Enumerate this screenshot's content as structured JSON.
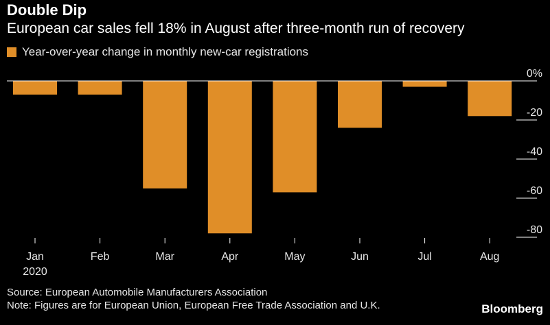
{
  "title": "Double Dip",
  "subtitle": "European car sales fell 18% in August after three-month run of recovery",
  "footer": {
    "source": "Source: European Automobile Manufacturers Association",
    "note": "Note: Figures are for European Union, European Free Trade Association and U.K.",
    "brand": "Bloomberg"
  },
  "colors": {
    "bar": "#E08E28",
    "background": "#000000",
    "text": "#FFFFFF",
    "axis": "#FFFFFF"
  },
  "chart_data": {
    "type": "bar",
    "categories": [
      "Jan",
      "Feb",
      "Mar",
      "Apr",
      "May",
      "Jun",
      "Jul",
      "Aug"
    ],
    "category_sublabels": [
      "2020",
      "",
      "",
      "",
      "",
      "",
      "",
      ""
    ],
    "series": [
      {
        "name": "Year-over-year change in monthly new-car registrations",
        "values": [
          -7,
          -7,
          -55,
          -78,
          -57,
          -24,
          -3,
          -18
        ]
      }
    ],
    "y_ticks": [
      "0%",
      "-20",
      "-40",
      "-60",
      "-80"
    ],
    "y_tick_values": [
      0,
      -20,
      -40,
      -60,
      -80
    ],
    "ylim": [
      -80,
      0
    ],
    "legend": "top-left",
    "grid": false
  }
}
